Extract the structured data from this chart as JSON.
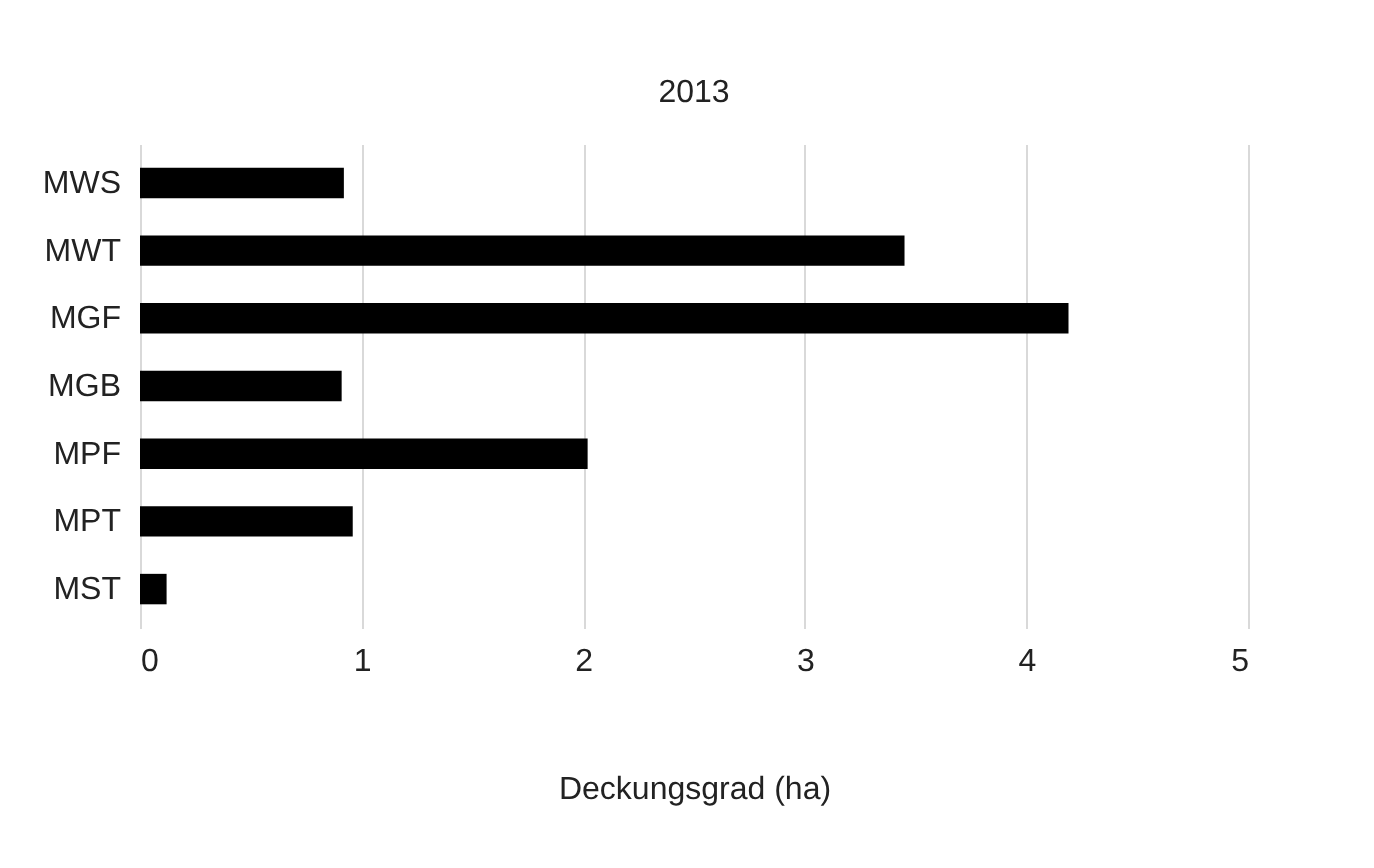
{
  "chart_data": {
    "type": "bar",
    "orientation": "horizontal",
    "title": "2013",
    "xlabel": "Deckungsgrad (ha)",
    "categories": [
      "MWS",
      "MWT",
      "MGF",
      "MGB",
      "MPF",
      "MPT",
      "MST"
    ],
    "values": [
      0.92,
      3.45,
      4.19,
      0.91,
      2.02,
      0.96,
      0.12
    ],
    "color": "#000000",
    "xlim": [
      0,
      5
    ],
    "xticks": [
      0,
      1,
      2,
      3,
      4,
      5
    ],
    "grid": "x"
  }
}
